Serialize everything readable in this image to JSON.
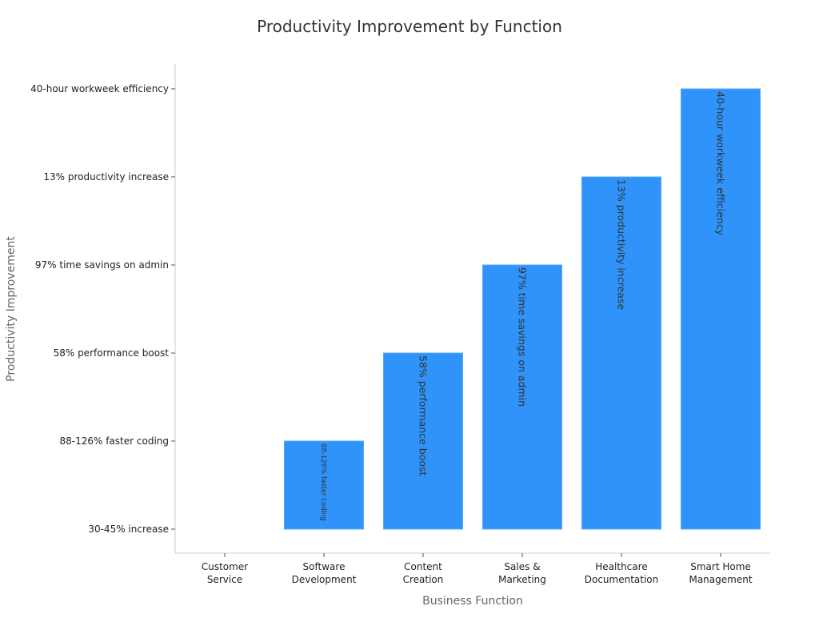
{
  "chart_data": {
    "type": "bar",
    "title": "Productivity Improvement by Function",
    "xlabel": "Business Function",
    "ylabel": "Productivity Improvement",
    "y_categories": [
      "30-45% increase",
      "88-126% faster coding",
      "58% performance boost",
      "97% time savings on admin",
      "13% productivity increase",
      "40-hour workweek efficiency"
    ],
    "categories": [
      [
        "Customer",
        "Service"
      ],
      [
        "Software",
        "Development"
      ],
      [
        "Content",
        "Creation"
      ],
      [
        "Sales &",
        "Marketing"
      ],
      [
        "Healthcare",
        "Documentation"
      ],
      [
        "Smart Home",
        "Management"
      ]
    ],
    "values": [
      "30-45% increase",
      "88-126% faster coding",
      "58% performance boost",
      "97% time savings on admin",
      "13% productivity increase",
      "40-hour workweek efficiency"
    ],
    "bar_labels": [
      "",
      "88-126% faster coding",
      "58% performance boost",
      "97% time savings on admin",
      "13% productivity increase",
      "40-hour workweek efficiency"
    ],
    "bar_color": "#2f93fa",
    "grid": false,
    "legend": "none"
  }
}
